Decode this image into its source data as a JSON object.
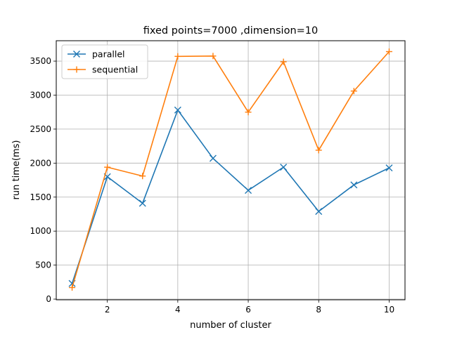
{
  "chart_data": {
    "type": "line",
    "title": "fixed points=7000 ,dimension=10",
    "xlabel": "number of cluster",
    "ylabel": "run time(ms)",
    "xlim": [
      0.55,
      10.45
    ],
    "ylim": [
      -10,
      3800
    ],
    "xticks": [
      2,
      4,
      6,
      8,
      10
    ],
    "yticks": [
      0,
      500,
      1000,
      1500,
      2000,
      2500,
      3000,
      3500
    ],
    "grid": true,
    "legend_position": "top-left",
    "x": [
      1,
      2,
      3,
      4,
      5,
      6,
      7,
      8,
      9,
      10
    ],
    "series": [
      {
        "name": "parallel",
        "marker": "x",
        "color": "#1f77b4",
        "values": [
          230,
          1800,
          1410,
          2780,
          2070,
          1600,
          1940,
          1290,
          1680,
          1930
        ]
      },
      {
        "name": "sequential",
        "marker": "+",
        "color": "#ff7f0e",
        "values": [
          170,
          1940,
          1810,
          3570,
          3575,
          2750,
          3490,
          2190,
          3060,
          3640
        ]
      }
    ]
  }
}
